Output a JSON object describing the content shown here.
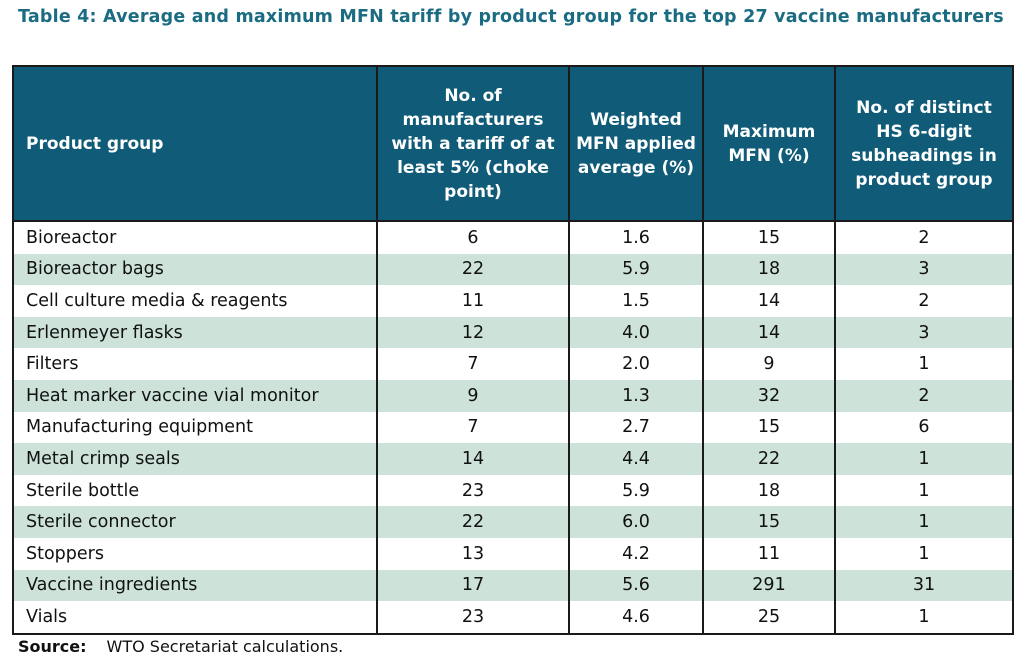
{
  "title": "Table 4: Average and maximum MFN tariff by product group for the top 27 vaccine manufacturers",
  "headers": [
    "Product group",
    "No. of manufacturers with a tariff of at least 5% (choke point)",
    "Weighted MFN applied average (%)",
    "Maximum MFN (%)",
    "No. of distinct HS 6-digit subheadings in product group"
  ],
  "rows": [
    [
      "Bioreactor",
      "6",
      "1.6",
      "15",
      "2"
    ],
    [
      "Bioreactor bags",
      "22",
      "5.9",
      "18",
      "3"
    ],
    [
      "Cell culture media & reagents",
      "11",
      "1.5",
      "14",
      "2"
    ],
    [
      "Erlenmeyer flasks",
      "12",
      "4.0",
      "14",
      "3"
    ],
    [
      "Filters",
      "7",
      "2.0",
      "9",
      "1"
    ],
    [
      "Heat marker vaccine vial monitor",
      "9",
      "1.3",
      "32",
      "2"
    ],
    [
      "Manufacturing equipment",
      "7",
      "2.7",
      "15",
      "6"
    ],
    [
      "Metal crimp seals",
      "14",
      "4.4",
      "22",
      "1"
    ],
    [
      "Sterile bottle",
      "23",
      "5.9",
      "18",
      "1"
    ],
    [
      "Sterile connector",
      "22",
      "6.0",
      "15",
      "1"
    ],
    [
      "Stoppers",
      "13",
      "4.2",
      "11",
      "1"
    ],
    [
      "Vaccine ingredients",
      "17",
      "5.6",
      "291",
      "31"
    ],
    [
      "Vials",
      "23",
      "4.6",
      "25",
      "1"
    ]
  ],
  "source": {
    "label": "Source:",
    "text": "WTO Secretariat calculations."
  },
  "colors": {
    "title": "#1b6c82",
    "header_bg": "#0f5b78",
    "stripe": "#cde3da"
  }
}
